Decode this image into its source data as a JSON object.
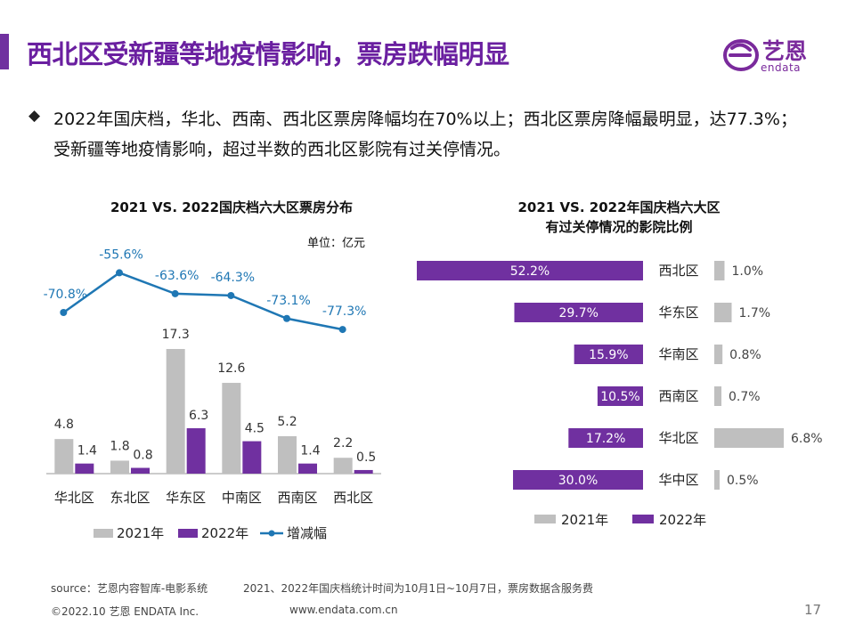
{
  "page": {
    "title": "西北区受新疆等地疫情影响，票房跌幅明显",
    "bullet_icon": "diamond-bullet",
    "paragraph": "2022年国庆档，华北、西南、西北区票房降幅均在70%以上；西北区票房降幅最明显，达77.3%；受新疆等地疫情影响，超过半数的西北区影院有过关停情况。",
    "logo": {
      "cn": "艺恩",
      "en": "endata",
      "icon": "e-logo-icon"
    },
    "footer": {
      "source": "source：艺恩内容智库-电影系统",
      "note": "2021、2022年国庆档统计时间为10月1日~10月7日，票房数据含服务费",
      "copyright": "©2022.10 艺恩 ENDATA Inc.",
      "website": "www.endata.com.cn",
      "page_number": "17"
    },
    "colors": {
      "purple": "#7030a0",
      "gray": "#bfbfbf",
      "line": "#1f77b4",
      "title": "#6a1fa0"
    }
  },
  "chart_data": [
    {
      "type": "bar",
      "title": "2021 VS. 2022国庆档六大区票房分布",
      "unit_label": "单位：亿元",
      "categories": [
        "华北区",
        "东北区",
        "华东区",
        "中南区",
        "西南区",
        "西北区"
      ],
      "series": [
        {
          "name": "2021年",
          "type": "bar",
          "values": [
            4.8,
            1.8,
            17.3,
            12.6,
            5.2,
            2.2
          ],
          "labels": [
            "4.8",
            "1.8",
            "17.3",
            "12.6",
            "5.2",
            "2.2"
          ]
        },
        {
          "name": "2022年",
          "type": "bar",
          "values": [
            1.4,
            0.8,
            6.3,
            4.5,
            1.4,
            0.5
          ],
          "labels": [
            "1.4",
            "0.8",
            "6.3",
            "4.5",
            "1.4",
            "0.5"
          ]
        },
        {
          "name": "增减幅",
          "type": "line",
          "values": [
            -70.8,
            -55.6,
            -63.6,
            -64.3,
            -73.1,
            -77.3
          ],
          "labels": [
            "-70.8%",
            "-55.6%",
            "-63.6%",
            "-64.3%",
            "-73.1%",
            "-77.3%"
          ]
        }
      ],
      "ylim": [
        0,
        20
      ],
      "line_ylim": [
        -80,
        -50
      ],
      "legend": "bottom"
    },
    {
      "type": "bar",
      "orientation": "horizontal-butterfly",
      "title_lines": [
        "2021 VS. 2022年国庆档六大区",
        "有过关停情况的影院比例"
      ],
      "categories": [
        "西北区",
        "华东区",
        "华南区",
        "西南区",
        "华北区",
        "华中区"
      ],
      "series": [
        {
          "name": "2022年",
          "side": "left",
          "values": [
            52.2,
            29.7,
            15.9,
            10.5,
            17.2,
            30.0
          ],
          "labels": [
            "52.2%",
            "29.7%",
            "15.9%",
            "10.5%",
            "17.2%",
            "30.0%"
          ]
        },
        {
          "name": "2021年",
          "side": "right",
          "values": [
            1.0,
            1.7,
            0.8,
            0.7,
            6.8,
            0.5
          ],
          "labels": [
            "1.0%",
            "1.7%",
            "0.8%",
            "0.7%",
            "6.8%",
            "0.5%"
          ]
        }
      ],
      "legend_order": [
        "2021年",
        "2022年"
      ],
      "legend": "bottom"
    }
  ]
}
